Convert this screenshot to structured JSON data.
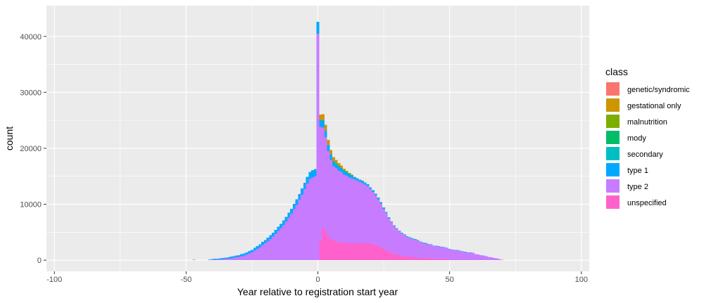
{
  "chart_data": {
    "type": "histogram-stacked",
    "xlabel": "Year relative to registration start year",
    "ylabel": "count",
    "xlim": [
      -103,
      103
    ],
    "ylim": [
      -2000,
      45500
    ],
    "x_ticks": [
      -100,
      -50,
      0,
      50,
      100
    ],
    "y_ticks": [
      0,
      10000,
      20000,
      30000,
      40000
    ],
    "y_tick_labels": [
      "0",
      "10000",
      "20000",
      "30000",
      "40000"
    ],
    "x_tick_labels": [
      "-100",
      "-50",
      "0",
      "50",
      "100"
    ],
    "bin_width": 1,
    "grid": true,
    "legend": {
      "title": "class",
      "position": "right",
      "entries": [
        {
          "name": "genetic/syndromic",
          "color": "#F8766D"
        },
        {
          "name": "gestational only",
          "color": "#CD9600"
        },
        {
          "name": "malnutrition",
          "color": "#7CAE00"
        },
        {
          "name": "mody",
          "color": "#00BE67"
        },
        {
          "name": "secondary",
          "color": "#00BFC4"
        },
        {
          "name": "type 1",
          "color": "#00A9FF"
        },
        {
          "name": "type 2",
          "color": "#C77CFF"
        },
        {
          "name": "unspecified",
          "color": "#FF61CC"
        }
      ]
    },
    "bins": [
      -47,
      -46,
      -45,
      -44,
      -43,
      -42,
      -41,
      -40,
      -39,
      -38,
      -37,
      -36,
      -35,
      -34,
      -33,
      -32,
      -31,
      -30,
      -29,
      -28,
      -27,
      -26,
      -25,
      -24,
      -23,
      -22,
      -21,
      -20,
      -19,
      -18,
      -17,
      -16,
      -15,
      -14,
      -13,
      -12,
      -11,
      -10,
      -9,
      -8,
      -7,
      -6,
      -5,
      -4,
      -3,
      -2,
      -1,
      0,
      1,
      2,
      3,
      4,
      5,
      6,
      7,
      8,
      9,
      10,
      11,
      12,
      13,
      14,
      15,
      16,
      17,
      18,
      19,
      20,
      21,
      22,
      23,
      24,
      25,
      26,
      27,
      28,
      29,
      30,
      31,
      32,
      33,
      34,
      35,
      36,
      37,
      38,
      39,
      40,
      41,
      42,
      43,
      44,
      45,
      46,
      47,
      48,
      49,
      50,
      51,
      52,
      53,
      54,
      55,
      56,
      57,
      58,
      59,
      60,
      61,
      62,
      63,
      64,
      65,
      66,
      67,
      68,
      69,
      70,
      71,
      72
    ],
    "series": [
      {
        "name": "unspecified",
        "color": "#FF61CC",
        "values": [
          0,
          0,
          0,
          0,
          0,
          0,
          0,
          0,
          0,
          0,
          0,
          0,
          0,
          0,
          0,
          0,
          0,
          0,
          0,
          0,
          0,
          0,
          0,
          0,
          0,
          0,
          0,
          0,
          0,
          0,
          0,
          0,
          0,
          0,
          0,
          0,
          0,
          0,
          0,
          0,
          0,
          0,
          0,
          0,
          0,
          0,
          0,
          0,
          3500,
          5800,
          5200,
          4300,
          3800,
          3500,
          3300,
          3200,
          3100,
          3100,
          3100,
          3000,
          3000,
          3000,
          3000,
          3000,
          3000,
          3000,
          3000,
          2900,
          2800,
          2700,
          2500,
          2300,
          2000,
          1800,
          1500,
          1300,
          1100,
          1000,
          900,
          800,
          700,
          600,
          600,
          500,
          500,
          400,
          400,
          300,
          300,
          300,
          300,
          200,
          200,
          200,
          200,
          200,
          200,
          100,
          100,
          100,
          100,
          100,
          100,
          100,
          100,
          100,
          100,
          0,
          0,
          0,
          0,
          0,
          0,
          0,
          0,
          0,
          0,
          0,
          0,
          0
        ]
      },
      {
        "name": "type 2",
        "color": "#C77CFF",
        "values": [
          0,
          0,
          0,
          0,
          0,
          0,
          50,
          80,
          100,
          120,
          150,
          200,
          250,
          300,
          350,
          400,
          500,
          600,
          700,
          800,
          1000,
          1200,
          1400,
          1700,
          2000,
          2300,
          2700,
          3000,
          3400,
          3800,
          4200,
          4700,
          5200,
          5700,
          6300,
          6900,
          7600,
          8300,
          9100,
          9900,
          10800,
          11700,
          12700,
          13700,
          14500,
          14800,
          15000,
          40500,
          20300,
          17900,
          16800,
          15200,
          14100,
          13300,
          13100,
          12800,
          12600,
          12200,
          12000,
          11800,
          11600,
          11400,
          11200,
          11000,
          10800,
          10500,
          10200,
          9800,
          9400,
          8900,
          8400,
          7800,
          7200,
          6600,
          6000,
          5500,
          5000,
          4600,
          4300,
          4000,
          3800,
          3600,
          3400,
          3300,
          3200,
          3100,
          2900,
          2800,
          2700,
          2600,
          2500,
          2400,
          2400,
          2300,
          2200,
          2100,
          2000,
          1900,
          1800,
          1700,
          1700,
          1600,
          1500,
          1400,
          1300,
          1300,
          1200,
          1100,
          1000,
          900,
          800,
          700,
          600,
          500,
          400,
          300,
          200,
          100,
          0
        ]
      },
      {
        "name": "type 1",
        "color": "#00A9FF",
        "values": [
          100,
          0,
          0,
          0,
          0,
          0,
          100,
          120,
          140,
          160,
          180,
          200,
          220,
          240,
          260,
          280,
          300,
          320,
          350,
          380,
          400,
          430,
          460,
          490,
          520,
          550,
          580,
          610,
          640,
          670,
          700,
          730,
          760,
          790,
          820,
          850,
          880,
          910,
          940,
          970,
          1000,
          1100,
          1150,
          1200,
          1250,
          1300,
          1300,
          2100,
          1300,
          1200,
          1100,
          1000,
          900,
          800,
          700,
          650,
          600,
          550,
          500,
          450,
          400,
          380,
          350,
          330,
          300,
          280,
          260,
          240,
          220,
          200,
          180,
          160,
          140,
          120,
          100,
          90,
          80,
          70,
          60,
          50,
          40,
          30,
          30,
          30,
          20,
          20,
          20,
          20,
          20,
          10,
          10,
          10,
          10,
          10,
          10,
          10,
          10,
          10,
          10,
          10,
          10,
          10,
          10,
          10,
          10,
          10,
          0,
          0,
          0,
          0,
          0,
          0,
          0,
          0,
          0,
          0,
          0,
          0,
          0
        ]
      },
      {
        "name": "secondary",
        "color": "#00BFC4",
        "values": [
          0,
          0,
          0,
          0,
          0,
          0,
          0,
          0,
          0,
          0,
          0,
          0,
          0,
          0,
          0,
          0,
          0,
          0,
          0,
          0,
          0,
          0,
          0,
          0,
          0,
          0,
          0,
          0,
          0,
          0,
          0,
          0,
          0,
          0,
          0,
          0,
          0,
          0,
          0,
          0,
          0,
          0,
          0,
          0,
          0,
          0,
          0,
          0,
          0,
          100,
          100,
          100,
          100,
          100,
          100,
          100,
          100,
          100,
          100,
          100,
          100,
          100,
          100,
          100,
          100,
          100,
          100,
          100,
          100,
          100,
          100,
          100,
          100,
          100,
          100,
          50,
          50,
          50,
          50,
          50,
          50,
          50,
          50,
          50,
          50,
          50,
          50,
          50,
          50,
          0,
          0,
          0,
          0,
          0,
          0,
          0,
          0,
          0,
          0,
          0,
          0,
          0,
          0,
          0,
          0,
          0,
          0,
          0,
          0,
          0,
          0,
          0,
          0,
          0,
          0,
          0,
          0,
          0,
          0,
          0
        ]
      },
      {
        "name": "mody",
        "color": "#00BE67",
        "values": [
          0,
          0,
          0,
          0,
          0,
          0,
          0,
          0,
          0,
          0,
          0,
          0,
          0,
          0,
          0,
          0,
          0,
          0,
          0,
          0,
          0,
          0,
          0,
          0,
          0,
          0,
          0,
          0,
          0,
          0,
          0,
          0,
          0,
          0,
          0,
          0,
          0,
          0,
          0,
          0,
          0,
          0,
          0,
          0,
          0,
          0,
          0,
          0,
          0,
          0,
          0,
          0,
          0,
          0,
          100,
          100,
          100,
          100,
          100,
          100,
          100,
          0,
          0,
          0,
          0,
          0,
          0,
          0,
          0,
          0,
          0,
          0,
          0,
          0,
          0,
          0,
          0,
          0,
          0,
          0,
          0,
          0,
          0,
          0,
          0,
          0,
          0,
          0,
          0,
          0,
          0,
          0,
          0,
          0,
          0,
          0,
          0,
          0,
          0,
          0,
          0,
          0,
          0,
          0,
          0,
          0,
          0,
          0,
          0,
          0,
          0,
          0,
          0,
          0,
          0,
          0,
          0,
          0,
          0,
          0
        ]
      },
      {
        "name": "malnutrition",
        "color": "#7CAE00",
        "values": [
          0,
          0,
          0,
          0,
          0,
          0,
          0,
          0,
          0,
          0,
          0,
          0,
          0,
          0,
          0,
          0,
          0,
          0,
          0,
          0,
          0,
          0,
          0,
          0,
          0,
          0,
          0,
          0,
          0,
          0,
          0,
          0,
          0,
          0,
          0,
          0,
          0,
          0,
          0,
          0,
          0,
          0,
          0,
          0,
          0,
          0,
          0,
          0,
          0,
          0,
          0,
          0,
          0,
          0,
          0,
          0,
          0,
          0,
          0,
          0,
          0,
          0,
          0,
          0,
          0,
          0,
          0,
          0,
          0,
          0,
          0,
          0,
          0,
          0,
          0,
          0,
          0,
          0,
          0,
          0,
          0,
          0,
          0,
          0,
          0,
          0,
          0,
          0,
          0,
          0,
          0,
          0,
          0,
          0,
          0,
          0,
          0,
          0,
          0,
          0,
          0,
          0,
          0,
          0,
          0,
          0,
          0,
          0,
          0,
          0,
          0,
          0,
          0,
          0,
          0,
          0,
          0,
          0,
          0,
          0
        ]
      },
      {
        "name": "gestational only",
        "color": "#CD9600",
        "values": [
          0,
          0,
          0,
          0,
          0,
          0,
          0,
          0,
          0,
          0,
          0,
          0,
          0,
          0,
          0,
          0,
          0,
          0,
          0,
          0,
          0,
          0,
          0,
          0,
          0,
          0,
          0,
          0,
          0,
          0,
          0,
          0,
          0,
          0,
          0,
          0,
          0,
          0,
          0,
          0,
          0,
          0,
          0,
          0,
          0,
          0,
          0,
          0,
          900,
          1100,
          1000,
          900,
          800,
          700,
          600,
          500,
          400,
          300,
          200,
          150,
          100,
          50,
          0,
          0,
          0,
          0,
          0,
          0,
          0,
          0,
          0,
          0,
          0,
          0,
          0,
          0,
          0,
          0,
          0,
          0,
          0,
          0,
          0,
          0,
          0,
          0,
          0,
          0,
          0,
          0,
          0,
          0,
          0,
          0,
          0,
          0,
          0,
          0,
          0,
          0,
          0,
          0,
          0,
          0,
          0,
          0,
          0,
          0,
          0,
          0,
          0,
          0,
          0,
          0,
          0,
          0,
          0,
          0,
          0,
          0
        ]
      },
      {
        "name": "genetic/syndromic",
        "color": "#F8766D",
        "values": [
          0,
          0,
          0,
          0,
          0,
          0,
          0,
          0,
          0,
          0,
          0,
          0,
          0,
          0,
          0,
          0,
          0,
          0,
          0,
          0,
          0,
          0,
          0,
          0,
          0,
          0,
          0,
          0,
          0,
          0,
          0,
          0,
          0,
          0,
          0,
          0,
          0,
          0,
          0,
          0,
          0,
          0,
          0,
          0,
          0,
          0,
          0,
          0,
          0,
          0,
          0,
          0,
          0,
          0,
          0,
          0,
          0,
          0,
          0,
          0,
          0,
          0,
          0,
          0,
          0,
          0,
          0,
          0,
          0,
          0,
          0,
          0,
          0,
          0,
          0,
          0,
          0,
          0,
          0,
          0,
          0,
          0,
          0,
          0,
          0,
          0,
          0,
          0,
          0,
          0,
          0,
          0,
          0,
          0,
          0,
          0,
          0,
          0,
          0,
          0,
          0,
          0,
          0,
          0,
          0,
          0,
          0,
          0,
          0,
          0,
          0,
          0,
          0,
          0,
          0,
          0,
          0,
          0,
          0,
          0
        ]
      }
    ]
  }
}
